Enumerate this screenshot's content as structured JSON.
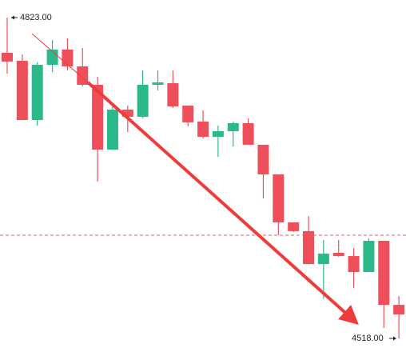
{
  "chart_data": {
    "type": "candlestick",
    "up_color": "#2bb98c",
    "down_color": "#ef4f5a",
    "ylim": [
      4497.5,
      4839.7
    ],
    "price_line": 4616.1,
    "high_label": {
      "value": 4823,
      "label": "4823.00"
    },
    "low_label": {
      "value": 4518,
      "label": "4518.00"
    },
    "candles": [
      {
        "open": 4789.5,
        "high": 4823.0,
        "low": 4769.8,
        "close": 4781.2
      },
      {
        "open": 4781.9,
        "high": 4788.0,
        "low": 4725.6,
        "close": 4725.6
      },
      {
        "open": 4725.6,
        "high": 4780.4,
        "low": 4720.3,
        "close": 4778.1
      },
      {
        "open": 4778.1,
        "high": 4801.7,
        "low": 4771.3,
        "close": 4792.6
      },
      {
        "open": 4792.6,
        "high": 4803.2,
        "low": 4772.8,
        "close": 4776.6
      },
      {
        "open": 4776.6,
        "high": 4794.1,
        "low": 4757.6,
        "close": 4759.1
      },
      {
        "open": 4759.1,
        "high": 4766.7,
        "low": 4667.1,
        "close": 4697.5
      },
      {
        "open": 4697.5,
        "high": 4740.9,
        "low": 4697.5,
        "close": 4735.5
      },
      {
        "open": 4735.5,
        "high": 4739.3,
        "low": 4714.2,
        "close": 4728.7
      },
      {
        "open": 4728.7,
        "high": 4772.8,
        "low": 4727.2,
        "close": 4759.1
      },
      {
        "open": 4759.1,
        "high": 4772.8,
        "low": 4753.8,
        "close": 4761.4
      },
      {
        "open": 4760.6,
        "high": 4772.8,
        "low": 4737.1,
        "close": 4738.6
      },
      {
        "open": 4739.3,
        "high": 4739.3,
        "low": 4719.6,
        "close": 4723.4
      },
      {
        "open": 4724.1,
        "high": 4734.8,
        "low": 4708.1,
        "close": 4709.7
      },
      {
        "open": 4709.7,
        "high": 4720.3,
        "low": 4690.7,
        "close": 4715.0
      },
      {
        "open": 4715.0,
        "high": 4724.1,
        "low": 4700.5,
        "close": 4722.6
      },
      {
        "open": 4722.6,
        "high": 4727.2,
        "low": 4702.1,
        "close": 4702.1
      },
      {
        "open": 4702.1,
        "high": 4702.1,
        "low": 4651.1,
        "close": 4673.9
      },
      {
        "open": 4673.9,
        "high": 4673.9,
        "low": 4616.1,
        "close": 4628.3
      },
      {
        "open": 4628.3,
        "high": 4628.3,
        "low": 4619.2,
        "close": 4620.0
      },
      {
        "open": 4620.0,
        "high": 4634.4,
        "low": 4588.7,
        "close": 4588.7
      },
      {
        "open": 4588.7,
        "high": 4611.6,
        "low": 4556.0,
        "close": 4598.6
      },
      {
        "open": 4599.4,
        "high": 4611.6,
        "low": 4595.6,
        "close": 4596.3
      },
      {
        "open": 4596.3,
        "high": 4603.9,
        "low": 4565.9,
        "close": 4581.1
      },
      {
        "open": 4581.1,
        "high": 4613.1,
        "low": 4581.1,
        "close": 4610.8
      },
      {
        "open": 4610.8,
        "high": 4610.8,
        "low": 4527.9,
        "close": 4549.9
      },
      {
        "open": 4549.9,
        "high": 4558.3,
        "low": 4518.0,
        "close": 4540.8
      }
    ]
  }
}
